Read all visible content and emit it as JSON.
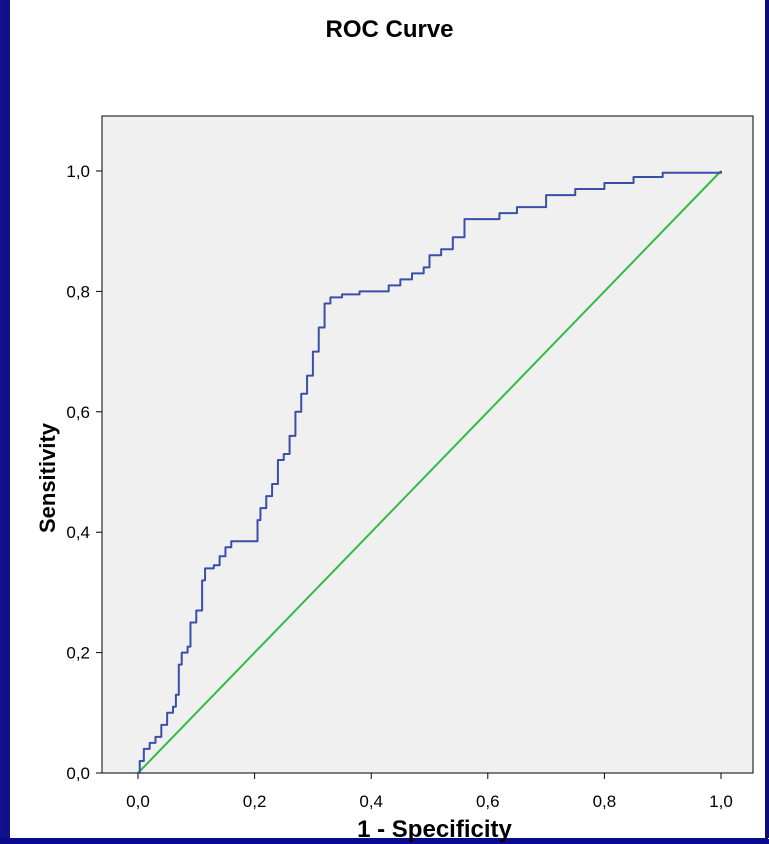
{
  "chart_data": {
    "type": "line",
    "title": "ROC Curve",
    "xlabel": "1 - Specificity",
    "ylabel": "Sensitivity",
    "xlim": [
      0,
      1
    ],
    "ylim": [
      0,
      1
    ],
    "x_ticks": [
      "0,0",
      "0,2",
      "0,4",
      "0,6",
      "0,8",
      "1,0"
    ],
    "y_ticks": [
      "0,0",
      "0,2",
      "0,4",
      "0,6",
      "0,8",
      "1,0"
    ],
    "grid": false,
    "series": [
      {
        "color": "#3a4fa8",
        "points": [
          [
            0.0,
            0.0
          ],
          [
            0.003,
            0.02
          ],
          [
            0.01,
            0.04
          ],
          [
            0.02,
            0.05
          ],
          [
            0.03,
            0.06
          ],
          [
            0.04,
            0.08
          ],
          [
            0.05,
            0.1
          ],
          [
            0.06,
            0.11
          ],
          [
            0.065,
            0.13
          ],
          [
            0.07,
            0.18
          ],
          [
            0.075,
            0.2
          ],
          [
            0.085,
            0.21
          ],
          [
            0.09,
            0.25
          ],
          [
            0.1,
            0.27
          ],
          [
            0.11,
            0.32
          ],
          [
            0.115,
            0.34
          ],
          [
            0.13,
            0.345
          ],
          [
            0.14,
            0.36
          ],
          [
            0.15,
            0.375
          ],
          [
            0.16,
            0.385
          ],
          [
            0.2,
            0.385
          ],
          [
            0.205,
            0.42
          ],
          [
            0.21,
            0.44
          ],
          [
            0.22,
            0.46
          ],
          [
            0.23,
            0.48
          ],
          [
            0.24,
            0.52
          ],
          [
            0.25,
            0.53
          ],
          [
            0.26,
            0.56
          ],
          [
            0.27,
            0.6
          ],
          [
            0.28,
            0.63
          ],
          [
            0.29,
            0.66
          ],
          [
            0.3,
            0.7
          ],
          [
            0.31,
            0.74
          ],
          [
            0.32,
            0.78
          ],
          [
            0.33,
            0.79
          ],
          [
            0.35,
            0.795
          ],
          [
            0.38,
            0.8
          ],
          [
            0.41,
            0.8
          ],
          [
            0.43,
            0.81
          ],
          [
            0.45,
            0.82
          ],
          [
            0.47,
            0.83
          ],
          [
            0.49,
            0.84
          ],
          [
            0.5,
            0.86
          ],
          [
            0.52,
            0.87
          ],
          [
            0.54,
            0.89
          ],
          [
            0.56,
            0.92
          ],
          [
            0.6,
            0.92
          ],
          [
            0.62,
            0.93
          ],
          [
            0.65,
            0.94
          ],
          [
            0.7,
            0.96
          ],
          [
            0.75,
            0.97
          ],
          [
            0.8,
            0.98
          ],
          [
            0.85,
            0.99
          ],
          [
            0.9,
            0.997
          ],
          [
            0.95,
            0.997
          ],
          [
            1.0,
            1.0
          ]
        ]
      },
      {
        "color": "#33bb44",
        "points": [
          [
            0.0,
            0.0
          ],
          [
            1.0,
            1.0
          ]
        ]
      }
    ]
  }
}
